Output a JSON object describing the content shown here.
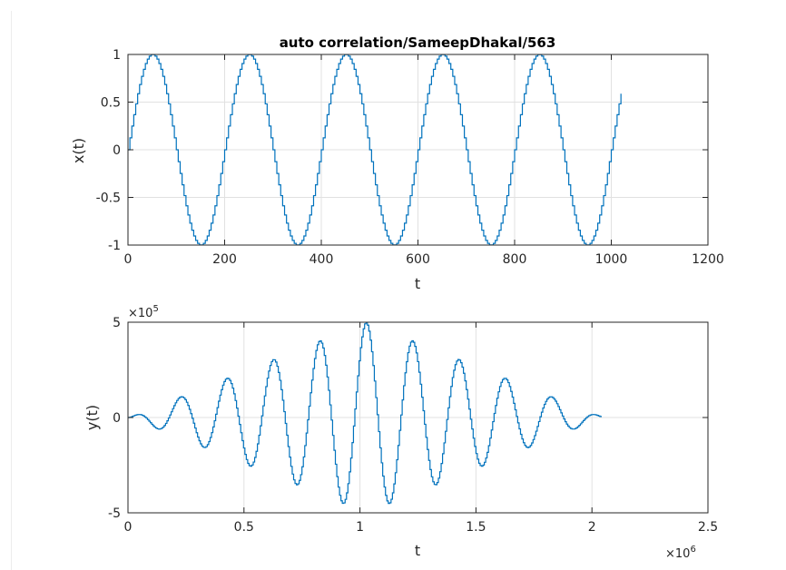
{
  "chart_data": [
    {
      "type": "line",
      "title": "auto correlation/SameepDhakal/563",
      "xlabel": "t",
      "ylabel": "x(t)",
      "xlim": [
        0,
        1200
      ],
      "ylim": [
        -1,
        1
      ],
      "xticks": [
        0,
        200,
        400,
        600,
        800,
        1000,
        1200
      ],
      "xtick_labels": [
        "0",
        "200",
        "400",
        "600",
        "800",
        "1000",
        "1200"
      ],
      "yticks": [
        -1,
        -0.5,
        0,
        0.5,
        1
      ],
      "ytick_labels": [
        "-1",
        "-0.5",
        "0",
        "0.5",
        "1"
      ],
      "grid": true,
      "color": "#0072bd",
      "series": [
        {
          "description": "staircase sinusoid x(t) = sin(2*pi*t/200), t = 0..1023",
          "x": [
            0,
            50,
            100,
            150,
            200,
            250,
            300,
            350,
            400,
            450,
            500,
            550,
            600,
            650,
            700,
            750,
            800,
            850,
            900,
            950,
            1000,
            1023
          ],
          "y": [
            0,
            1,
            0,
            -1,
            0,
            1,
            0,
            -1,
            0,
            1,
            0,
            -1,
            0,
            1,
            0,
            -1,
            0,
            1,
            0,
            -1,
            0,
            0.68
          ]
        }
      ]
    },
    {
      "type": "line",
      "title": "",
      "xlabel": "t",
      "ylabel": "y(t)",
      "xlim": [
        0,
        2500000
      ],
      "ylim": [
        -500000,
        500000
      ],
      "xticks": [
        0,
        500000,
        1000000,
        1500000,
        2000000,
        2500000
      ],
      "xtick_labels": [
        "0",
        "0.5",
        "1",
        "1.5",
        "2",
        "2.5"
      ],
      "x_exponent": "×10^6",
      "yticks": [
        -500000,
        0,
        500000
      ],
      "ytick_labels": [
        "-5",
        "0",
        "5"
      ],
      "y_exponent": "×10^5",
      "grid": true,
      "color": "#0072bd",
      "series": [
        {
          "description": "autocorrelation of x(t), oscillating with triangular envelope, peak ~5e5 at t~1.02e6",
          "x": [
            0,
            120000,
            230000,
            330000,
            430000,
            530000,
            630000,
            730000,
            830000,
            930000,
            1025000,
            1125000,
            1225000,
            1325000,
            1425000,
            1525000,
            1625000,
            1725000,
            1825000,
            1925000,
            2045000
          ],
          "y": [
            0,
            -50000,
            100000,
            -150000,
            200000,
            -250000,
            300000,
            -350000,
            400000,
            -450000,
            500000,
            -450000,
            400000,
            -350000,
            300000,
            -250000,
            200000,
            -150000,
            100000,
            -50000,
            0
          ]
        }
      ]
    }
  ]
}
